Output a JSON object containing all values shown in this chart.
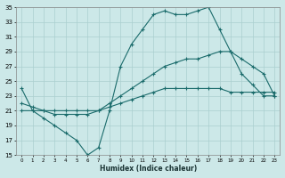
{
  "xlabel": "Humidex (Indice chaleur)",
  "background_color": "#cce8e8",
  "grid_color": "#aacfcf",
  "line_color": "#1a6b6b",
  "ylim": [
    15,
    35
  ],
  "xlim": [
    -0.5,
    23.5
  ],
  "yticks": [
    15,
    17,
    19,
    21,
    23,
    25,
    27,
    29,
    31,
    33,
    35
  ],
  "xticks": [
    0,
    1,
    2,
    3,
    4,
    5,
    6,
    7,
    8,
    9,
    10,
    11,
    12,
    13,
    14,
    15,
    16,
    17,
    18,
    19,
    20,
    21,
    22,
    23
  ],
  "line1_x": [
    0,
    1,
    2,
    3,
    4,
    5,
    6,
    7,
    8,
    9,
    10,
    11,
    12,
    13,
    14,
    15,
    16,
    17,
    18,
    19,
    20,
    21,
    22,
    23
  ],
  "line1_y": [
    24,
    21,
    20,
    19,
    18,
    17,
    15,
    16,
    21,
    27,
    30,
    32,
    34,
    34.5,
    34,
    34,
    34.5,
    35,
    32,
    29,
    26,
    24.5,
    23,
    23
  ],
  "line2_x": [
    0,
    1,
    2,
    3,
    4,
    5,
    6,
    7,
    8,
    9,
    10,
    11,
    12,
    13,
    14,
    15,
    16,
    17,
    18,
    19,
    20,
    21,
    22,
    23
  ],
  "line2_y": [
    22,
    21.5,
    21,
    20.5,
    20.5,
    20.5,
    20.5,
    21,
    22,
    23,
    24,
    25,
    26,
    27,
    27.5,
    28,
    28,
    28.5,
    29,
    29,
    28,
    27,
    26,
    23
  ],
  "line3_x": [
    0,
    1,
    2,
    3,
    4,
    5,
    6,
    7,
    8,
    9,
    10,
    11,
    12,
    13,
    14,
    15,
    16,
    17,
    18,
    19,
    20,
    21,
    22,
    23
  ],
  "line3_y": [
    21,
    21,
    21,
    21,
    21,
    21,
    21,
    21,
    21.5,
    22,
    22.5,
    23,
    23.5,
    24,
    24,
    24,
    24,
    24,
    24,
    23.5,
    23.5,
    23.5,
    23.5,
    23.5
  ]
}
